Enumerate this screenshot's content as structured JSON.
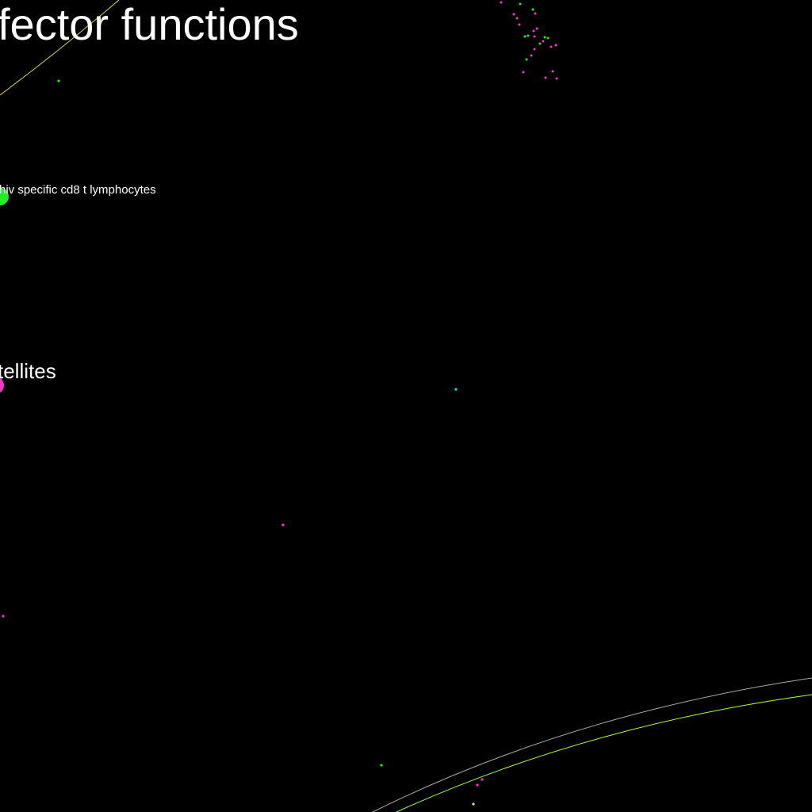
{
  "labels": {
    "large_title": "fector functions",
    "node_label_1": "hiv specific cd8 t lymphocytes",
    "node_label_2": "tellites"
  },
  "colors": {
    "background": "#000000",
    "text": "#ffffff",
    "node_green": "#22ee22",
    "node_magenta": "#ff33cc",
    "node_cyan": "#33dddd",
    "node_yellow": "#eeee33",
    "edge_yellow": "#dddd44",
    "edge_lime": "#aaff44",
    "edge_gray": "#aaaaaa"
  }
}
